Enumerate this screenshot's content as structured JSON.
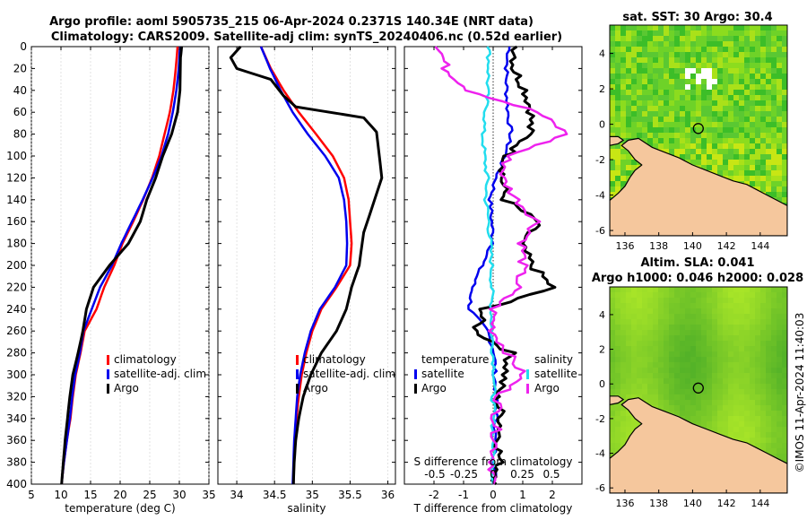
{
  "title": {
    "line1": "Argo profile: aoml 5905735_215 06-Apr-2024 0.2371S 140.34E (NRT data)",
    "line2": "Climatology: CARS2009. Satellite-adj clim: synTS_20240406.nc (0.52d earlier)"
  },
  "sst_title": "sat. SST: 30 Argo: 30.4",
  "sla_title1": "Altim. SLA: 0.041",
  "sla_title2": "Argo h1000: 0.046 h2000: 0.028",
  "credit": "©IMOS 11-Apr-2024 11:40:03",
  "colors": {
    "climatology": "#ff0000",
    "satellite": "#0000ee",
    "argo": "#000000",
    "sat_diff": "#22ddee",
    "argo_diff": "#ee22ee",
    "land": "#f5c79d"
  },
  "chart_data": [
    {
      "id": "temperature",
      "type": "line",
      "xlabel": "temperature (deg C)",
      "ylabel": "",
      "xlim": [
        5,
        35
      ],
      "ylim": [
        400,
        0
      ],
      "xticks": [
        5,
        10,
        15,
        20,
        25,
        30,
        35
      ],
      "yticks": [
        0,
        20,
        40,
        60,
        80,
        100,
        120,
        140,
        160,
        180,
        200,
        220,
        240,
        260,
        280,
        300,
        320,
        340,
        360,
        380,
        400
      ],
      "legend": [
        "climatology",
        "satellite-adj. clim",
        "Argo"
      ],
      "series": [
        {
          "name": "climatology",
          "x": [
            29.7,
            29.4,
            29.0,
            28.4,
            27.5,
            26.6,
            25.4,
            23.9,
            22.2,
            20.4,
            19.0,
            17.3,
            16.0,
            14.0,
            13.3,
            12.5,
            12.0,
            11.6,
            11.0,
            10.5,
            10.1
          ],
          "y": [
            0,
            20,
            40,
            60,
            80,
            100,
            120,
            140,
            160,
            180,
            200,
            220,
            240,
            260,
            280,
            300,
            320,
            340,
            360,
            380,
            400
          ]
        },
        {
          "name": "satellite-adj. clim",
          "x": [
            30.1,
            29.9,
            29.5,
            28.9,
            28.1,
            27.0,
            25.5,
            23.8,
            22.0,
            20.2,
            18.6,
            16.6,
            15.2,
            13.8,
            13.2,
            12.4,
            11.9,
            11.5,
            11.0,
            10.5,
            10.1
          ],
          "y": [
            0,
            20,
            40,
            60,
            80,
            100,
            120,
            140,
            160,
            180,
            200,
            220,
            240,
            260,
            280,
            300,
            320,
            340,
            360,
            380,
            400
          ]
        },
        {
          "name": "Argo",
          "x": [
            30.4,
            30.2,
            30.1,
            29.7,
            28.7,
            27.2,
            26.0,
            24.5,
            23.4,
            21.4,
            18.2,
            15.5,
            14.3,
            13.7,
            12.9,
            12.0,
            11.5,
            11.1,
            10.7,
            10.4,
            10.1
          ],
          "y": [
            0,
            10,
            40,
            60,
            80,
            100,
            120,
            140,
            160,
            180,
            200,
            220,
            240,
            260,
            280,
            300,
            320,
            340,
            360,
            380,
            400
          ]
        }
      ]
    },
    {
      "id": "salinity",
      "type": "line",
      "xlabel": "salinity",
      "ylabel": "",
      "xlim": [
        33.75,
        36.1
      ],
      "ylim": [
        400,
        0
      ],
      "xticks": [
        34,
        34.5,
        35,
        35.5,
        36
      ],
      "xticklabels": [
        "34",
        "34.5",
        "35",
        "35.5",
        "36"
      ],
      "legend": [
        "climatology",
        "satellite-adj. clim",
        "Argo"
      ],
      "series": [
        {
          "name": "climatology",
          "x": [
            34.32,
            34.45,
            34.62,
            34.82,
            35.05,
            35.27,
            35.42,
            35.48,
            35.5,
            35.52,
            35.5,
            35.32,
            35.12,
            35.0,
            34.92,
            34.86,
            34.82,
            34.79,
            34.77,
            34.76,
            34.75
          ],
          "y": [
            0,
            20,
            40,
            60,
            80,
            100,
            120,
            140,
            160,
            180,
            200,
            220,
            240,
            260,
            280,
            300,
            320,
            340,
            360,
            380,
            400
          ]
        },
        {
          "name": "satellite-adj. clim",
          "x": [
            34.32,
            34.44,
            34.58,
            34.74,
            34.94,
            35.17,
            35.35,
            35.42,
            35.45,
            35.46,
            35.45,
            35.3,
            35.1,
            34.98,
            34.9,
            34.84,
            34.8,
            34.78,
            34.76,
            34.75,
            34.74
          ],
          "y": [
            0,
            20,
            40,
            60,
            80,
            100,
            120,
            140,
            160,
            180,
            200,
            220,
            240,
            260,
            280,
            300,
            320,
            340,
            360,
            380,
            400
          ]
        },
        {
          "name": "Argo",
          "x": [
            34.05,
            33.92,
            34.0,
            34.45,
            34.62,
            34.78,
            35.68,
            35.85,
            35.92,
            35.68,
            35.62,
            35.52,
            35.45,
            35.32,
            35.12,
            34.98,
            34.88,
            34.82,
            34.78,
            34.76,
            34.75
          ],
          "y": [
            0,
            10,
            20,
            30,
            45,
            55,
            65,
            78,
            120,
            170,
            200,
            220,
            240,
            260,
            280,
            300,
            320,
            340,
            360,
            380,
            400
          ]
        }
      ]
    },
    {
      "id": "difference",
      "type": "line",
      "xlabel": "T difference from climatology",
      "ylabel": "",
      "xlim": [
        -3,
        3
      ],
      "ylim": [
        400,
        0
      ],
      "xticks": [
        -2,
        -1,
        0,
        1,
        2
      ],
      "top_axis_label": "S difference from climatology",
      "top_xticklabels": [
        "-0.5",
        "-0.25",
        "0",
        "0.25",
        "0.5"
      ],
      "legend_titles": [
        "temperature",
        "salinity"
      ],
      "legend": [
        "satellite",
        "Argo",
        "satellite",
        "Argo"
      ],
      "series": [
        {
          "name": "temperature satellite",
          "x": [
            0.55,
            0.45,
            0.45,
            0.5,
            0.6,
            0.4,
            0.1,
            -0.1,
            -0.05,
            0.0,
            -0.4,
            -0.7,
            -0.8,
            -0.2,
            0.05,
            0.05,
            0.1,
            0.1,
            0.05,
            0.05,
            0.05
          ],
          "y": [
            0,
            20,
            40,
            60,
            80,
            100,
            120,
            140,
            160,
            180,
            200,
            220,
            240,
            260,
            280,
            300,
            320,
            340,
            360,
            380,
            400
          ]
        },
        {
          "name": "temperature Argo",
          "x": [
            0.8,
            0.7,
            1.1,
            1.3,
            1.2,
            0.5,
            0.3,
            0.4,
            1.5,
            0.9,
            1.3,
            2.0,
            -0.3,
            -0.6,
            0.6,
            0.4,
            0.1,
            0.3,
            0.2,
            0.2,
            0.1
          ],
          "y": [
            0,
            20,
            40,
            60,
            80,
            100,
            120,
            140,
            160,
            180,
            200,
            220,
            240,
            260,
            280,
            300,
            320,
            340,
            360,
            380,
            400
          ]
        },
        {
          "name": "salinity satellite",
          "x": [
            -0.15,
            -0.15,
            -0.2,
            -0.25,
            -0.35,
            -0.3,
            -0.2,
            -0.25,
            -0.15,
            -0.1,
            -0.05,
            -0.05,
            -0.05,
            -0.05,
            0.0,
            0.05,
            0.0,
            0.0,
            0.0,
            0.0,
            0.0
          ],
          "y": [
            0,
            20,
            40,
            60,
            80,
            100,
            120,
            140,
            160,
            180,
            200,
            220,
            240,
            260,
            280,
            300,
            320,
            340,
            360,
            380,
            400
          ]
        },
        {
          "name": "salinity Argo",
          "x": [
            -1.8,
            -1.6,
            -0.8,
            1.5,
            2.5,
            0.5,
            0.3,
            0.8,
            1.5,
            1.0,
            1.0,
            0.8,
            0.0,
            0.0,
            0.5,
            1.0,
            0.2,
            0.1,
            0.1,
            0.0,
            0.0
          ],
          "y": [
            0,
            20,
            40,
            60,
            80,
            100,
            120,
            140,
            160,
            180,
            200,
            220,
            240,
            260,
            280,
            300,
            320,
            340,
            360,
            380,
            400
          ]
        }
      ]
    },
    {
      "id": "sst_map",
      "type": "heatmap",
      "title": "sat. SST: 30 Argo: 30.4",
      "xlim": [
        135.1,
        145.6
      ],
      "ylim": [
        -6.3,
        5.6
      ],
      "xticks": [
        136,
        138,
        140,
        142,
        144
      ],
      "yticks": [
        4,
        2,
        0,
        -2,
        -4,
        -6
      ],
      "marker": {
        "lon": 140.34,
        "lat": -0.2371
      }
    },
    {
      "id": "sla_map",
      "type": "heatmap",
      "title": "Altim. SLA: 0.041",
      "subtitle": "Argo h1000: 0.046 h2000: 0.028",
      "xlim": [
        135.1,
        145.6
      ],
      "ylim": [
        -6.3,
        5.6
      ],
      "xticks": [
        136,
        138,
        140,
        142,
        144
      ],
      "yticks": [
        4,
        2,
        0,
        -2,
        -4,
        -6
      ],
      "marker": {
        "lon": 140.34,
        "lat": -0.2371
      }
    }
  ]
}
